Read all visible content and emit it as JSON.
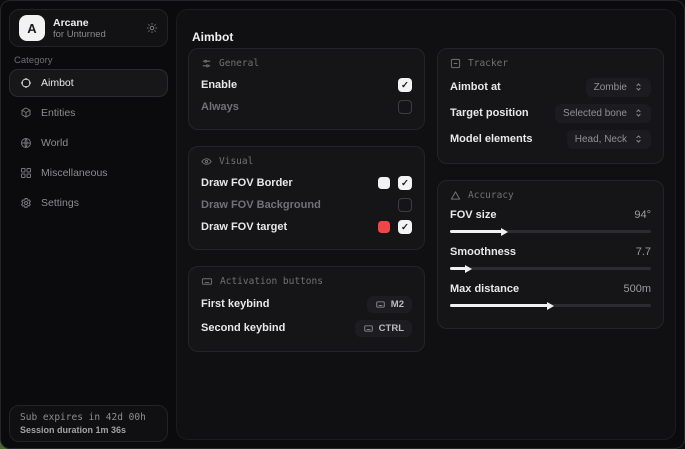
{
  "app": {
    "title": "Arcane",
    "subtitle": "for Unturned",
    "avatar_letter": "A"
  },
  "sidebar": {
    "category_label": "Category",
    "items": [
      {
        "label": "Aimbot",
        "icon": "crosshair-icon",
        "selected": true
      },
      {
        "label": "Entities",
        "icon": "entities-icon",
        "selected": false
      },
      {
        "label": "World",
        "icon": "globe-icon",
        "selected": false
      },
      {
        "label": "Miscellaneous",
        "icon": "grid-icon",
        "selected": false
      },
      {
        "label": "Settings",
        "icon": "gear-icon",
        "selected": false
      }
    ],
    "footer": {
      "line1": "Sub expires in 42d 00h",
      "line2": "Session duration 1m 36s"
    }
  },
  "main": {
    "title": "Aimbot",
    "cards": {
      "general": {
        "title": "General",
        "rows": [
          {
            "label": "Enable",
            "checked": true
          },
          {
            "label": "Always",
            "checked": false
          }
        ]
      },
      "visual": {
        "title": "Visual",
        "rows": [
          {
            "label": "Draw FOV Border",
            "color": "#f2f2f2",
            "checked": true
          },
          {
            "label": "Draw FOV Background",
            "checked": false
          },
          {
            "label": "Draw FOV target",
            "color": "#ee4747",
            "checked": true
          }
        ]
      },
      "activation": {
        "title": "Activation buttons",
        "rows": [
          {
            "label": "First keybind",
            "key": "M2"
          },
          {
            "label": "Second keybind",
            "key": "CTRL"
          }
        ]
      },
      "tracker": {
        "title": "Tracker",
        "rows": [
          {
            "label": "Aimbot at",
            "value": "Zombie"
          },
          {
            "label": "Target position",
            "value": "Selected bone"
          },
          {
            "label": "Model elements",
            "value": "Head, Neck"
          }
        ]
      },
      "accuracy": {
        "title": "Accuracy",
        "rows": [
          {
            "label": "FOV size",
            "value": "94°",
            "percent": 26
          },
          {
            "label": "Smoothness",
            "value": "7.7",
            "percent": 8
          },
          {
            "label": "Max distance",
            "value": "500m",
            "percent": 49
          }
        ]
      }
    }
  },
  "colors": {
    "swatch_white": "#f2f2f2",
    "swatch_red": "#ee4747",
    "card_bg": "#151518",
    "panel_bg": "#101013",
    "window_bg": "#0b0b0d"
  }
}
